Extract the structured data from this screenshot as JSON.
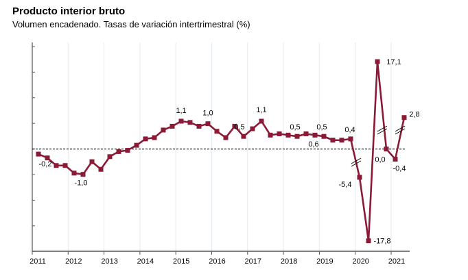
{
  "chart_data": {
    "type": "line",
    "title": "Producto interior bruto",
    "subtitle": "Volumen encadenado. Tasas de variación intertrimestral (%)",
    "xlabel": "",
    "ylabel": "",
    "x_tick_labels": [
      "2011",
      "2012",
      "2013",
      "2014",
      "2015",
      "2016",
      "2017",
      "2018",
      "2019",
      "2020",
      "2021"
    ],
    "frequency": "quarterly",
    "start": "2011 Q1",
    "values": [
      -0.2,
      -0.35,
      -0.65,
      -0.65,
      -0.95,
      -1.0,
      -0.5,
      -0.8,
      -0.3,
      -0.1,
      -0.05,
      0.15,
      0.4,
      0.45,
      0.75,
      0.9,
      1.1,
      1.05,
      0.9,
      1.0,
      0.7,
      0.45,
      0.9,
      0.5,
      0.8,
      1.1,
      0.55,
      0.6,
      0.55,
      0.5,
      0.6,
      0.55,
      0.5,
      0.35,
      0.35,
      0.4,
      -5.4,
      -17.8,
      17.1,
      0.0,
      -0.4,
      2.8
    ],
    "data_labels": [
      {
        "index": 0,
        "text": "-0,2"
      },
      {
        "index": 5,
        "text": "-1,0"
      },
      {
        "index": 16,
        "text": "1,1"
      },
      {
        "index": 19,
        "text": "1,0"
      },
      {
        "index": 23,
        "text": "0,5"
      },
      {
        "index": 25,
        "text": "1,1"
      },
      {
        "index": 29,
        "text": "0,5"
      },
      {
        "index": 32,
        "text": "0,5"
      },
      {
        "index": 31,
        "text": "0,6"
      },
      {
        "index": 35,
        "text": "0,4"
      },
      {
        "index": 36,
        "text": "-5,4"
      },
      {
        "index": 37,
        "text": "-17,8"
      },
      {
        "index": 38,
        "text": "17,1"
      },
      {
        "index": 39,
        "text": "0,0"
      },
      {
        "index": 40,
        "text": "-0,4"
      },
      {
        "index": 41,
        "text": "2,8"
      }
    ],
    "axis_break": true,
    "reference_line": 0,
    "grid": "vertical-light",
    "legend": "none",
    "series_color": "#8b1a36"
  }
}
